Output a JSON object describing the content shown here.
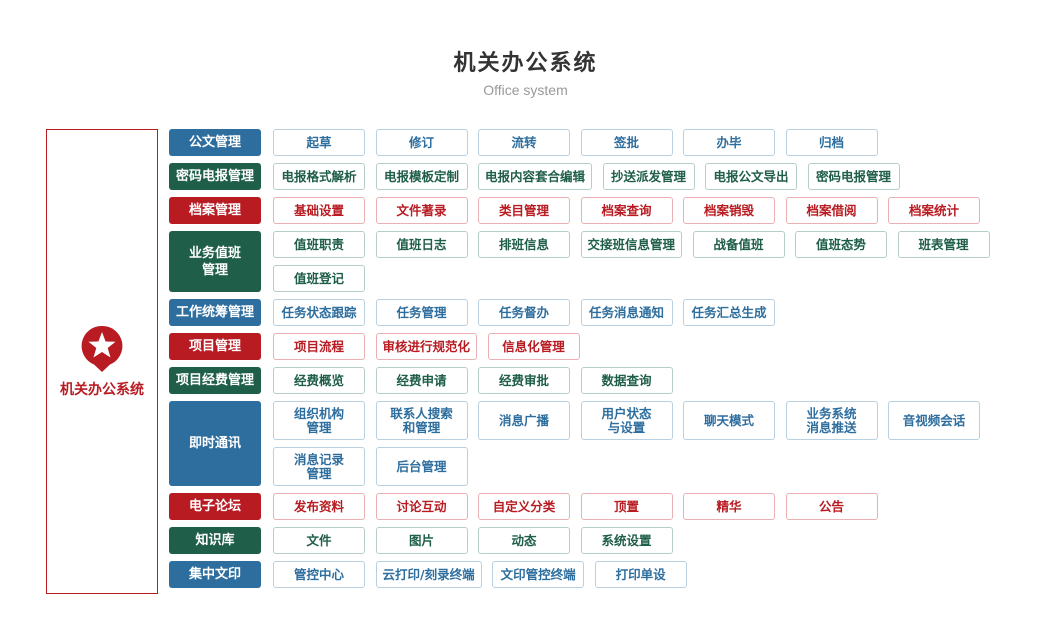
{
  "header": {
    "title": "机关办公系统",
    "subtitle": "Office system"
  },
  "logo": {
    "icon": "star-pin-icon",
    "label": "机关办公系统"
  },
  "colors": {
    "blue": {
      "fill": "#2e6e9e",
      "text": "#2e6e9e",
      "border": "#b9d0e0"
    },
    "green": {
      "fill": "#1f5e48",
      "text": "#1f5e48",
      "border": "#b5cfc6"
    },
    "red": {
      "fill": "#b81c22",
      "text": "#b81c22",
      "border": "#eab0b3"
    }
  },
  "rows": [
    {
      "category": "公文管理",
      "color": "blue",
      "items": [
        "起草",
        "修订",
        "流转",
        "签批",
        "办毕",
        "归档"
      ]
    },
    {
      "category": "密码电报管理",
      "color": "green",
      "items": [
        "电报格式解析",
        "电报模板定制",
        "电报内容套合编辑",
        "抄送派发管理",
        "电报公文导出",
        "密码电报管理"
      ]
    },
    {
      "category": "档案管理",
      "color": "red",
      "items": [
        "基础设置",
        "文件著录",
        "类目管理",
        "档案查询",
        "档案销毁",
        "档案借阅",
        "档案统计"
      ]
    },
    {
      "category": "业务值班\n管理",
      "color": "green",
      "items": [
        "值班职责",
        "值班日志",
        "排班信息",
        "交接班信息管理",
        "战备值班",
        "值班态势",
        "班表管理",
        "值班登记"
      ]
    },
    {
      "category": "工作统筹管理",
      "color": "blue",
      "items": [
        "任务状态跟踪",
        "任务管理",
        "任务督办",
        "任务消息通知",
        "任务汇总生成"
      ]
    },
    {
      "category": "项目管理",
      "color": "red",
      "items": [
        "项目流程",
        "审核进行规范化",
        "信息化管理"
      ]
    },
    {
      "category": "项目经费管理",
      "color": "green",
      "items": [
        "经费概览",
        "经费申请",
        "经费审批",
        "数据查询"
      ]
    },
    {
      "category": "即时通讯",
      "color": "blue",
      "tall": true,
      "items": [
        "组织机构\n管理",
        "联系人搜索\n和管理",
        "消息广播",
        "用户状态\n与设置",
        "聊天模式",
        "业务系统\n消息推送",
        "音视频会话",
        "消息记录\n管理",
        "后台管理"
      ]
    },
    {
      "category": "电子论坛",
      "color": "red",
      "items": [
        "发布资料",
        "讨论互动",
        "自定义分类",
        "顶置",
        "精华",
        "公告"
      ]
    },
    {
      "category": "知识库",
      "color": "green",
      "items": [
        "文件",
        "图片",
        "动态",
        "系统设置"
      ]
    },
    {
      "category": "集中文印",
      "color": "blue",
      "items": [
        "管控中心",
        "云打印/刻录终端",
        "文印管控终端",
        "打印单设"
      ]
    }
  ]
}
